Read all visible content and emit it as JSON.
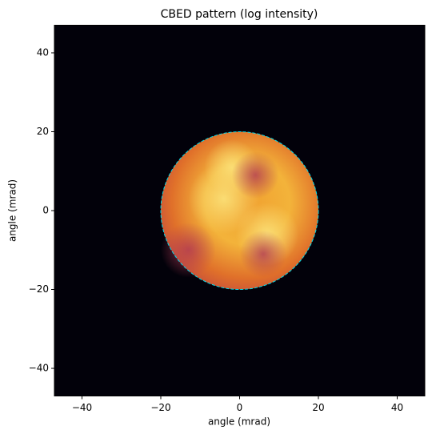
{
  "chart_data": {
    "type": "heatmap",
    "title": "CBED pattern (log intensity)",
    "xlabel": "angle (mrad)",
    "ylabel": "angle (mrad)",
    "xlim": [
      -47,
      47
    ],
    "ylim": [
      -47,
      47
    ],
    "xticks": [
      {
        "value": -40,
        "label": "−40"
      },
      {
        "value": -20,
        "label": "−20"
      },
      0,
      20,
      40
    ],
    "yticks": [
      {
        "value": -40,
        "label": "−40"
      },
      {
        "value": -20,
        "label": "−20"
      },
      0,
      20,
      40
    ],
    "circle": {
      "center": [
        0,
        0
      ],
      "radius": 20,
      "color": "#00d8e8"
    }
  }
}
